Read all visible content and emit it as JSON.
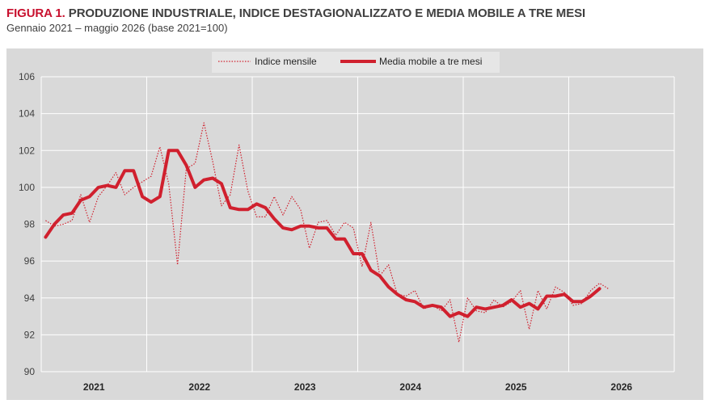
{
  "figure": {
    "label": "FIGURA 1.",
    "title": "PRODUZIONE INDUSTRIALE, INDICE DESTAGIONALIZZATO E MEDIA MOBILE A TRE MESI",
    "subtitle": "Gennaio 2021 – maggio 2026 (base 2021=100)"
  },
  "chart_data": {
    "type": "line",
    "title": "PRODUZIONE INDUSTRIALE, INDICE DESTAGIONALIZZATO E MEDIA MOBILE A TRE MESI",
    "subtitle": "Gennaio 2021 – maggio 2026 (base 2021=100)",
    "xlabel": "",
    "ylabel": "",
    "ylim": [
      90,
      106
    ],
    "yticks": [
      90,
      92,
      94,
      96,
      98,
      100,
      102,
      104,
      106
    ],
    "xticks": [
      "2021",
      "2022",
      "2023",
      "2024",
      "2025",
      "2026"
    ],
    "grid": "horizontal",
    "legend_position": "top-center",
    "colors": {
      "series": "#d0202e",
      "panel": "#d9d9d9",
      "grid": "#ffffff"
    },
    "x_start": "2021-01",
    "x_end": "2026-12",
    "series": [
      {
        "name": "Indice mensile",
        "style": "dotted",
        "start": "2021-01",
        "values": [
          98.2,
          97.9,
          98.0,
          98.2,
          99.6,
          98.1,
          99.5,
          100.1,
          100.8,
          99.6,
          100.0,
          100.3,
          100.6,
          102.2,
          100.2,
          95.8,
          101.0,
          101.3,
          103.5,
          101.4,
          99.0,
          99.6,
          102.3,
          99.8,
          98.4,
          98.4,
          99.5,
          98.5,
          99.5,
          98.8,
          96.7,
          98.1,
          98.2,
          97.4,
          98.1,
          97.8,
          95.7,
          98.1,
          95.2,
          95.8,
          94.2,
          94.1,
          94.4,
          93.4,
          93.6,
          93.3,
          93.9,
          91.6,
          94.0,
          93.3,
          93.2,
          93.9,
          93.5,
          93.8,
          94.4,
          92.3,
          94.4,
          93.4,
          94.6,
          94.3,
          93.6,
          93.7,
          94.4,
          94.8,
          94.5
        ]
      },
      {
        "name": "Media mobile a tre mesi",
        "style": "solid",
        "start": "2021-01",
        "values": [
          97.3,
          98.0,
          98.5,
          98.6,
          99.3,
          99.5,
          100.0,
          100.1,
          100.0,
          100.9,
          100.9,
          99.5,
          99.2,
          99.5,
          102.0,
          102.0,
          101.2,
          100.0,
          100.4,
          100.5,
          100.2,
          98.9,
          98.8,
          98.8,
          99.1,
          98.9,
          98.3,
          97.8,
          97.7,
          97.9,
          97.9,
          97.8,
          97.8,
          97.2,
          97.2,
          96.4,
          96.4,
          95.5,
          95.2,
          94.6,
          94.2,
          93.9,
          93.8,
          93.5,
          93.6,
          93.5,
          93.0,
          93.2,
          93.0,
          93.5,
          93.4,
          93.5,
          93.6,
          93.9,
          93.5,
          93.7,
          93.4,
          94.1,
          94.1,
          94.2,
          93.8,
          93.8,
          94.1,
          94.5
        ]
      }
    ]
  }
}
